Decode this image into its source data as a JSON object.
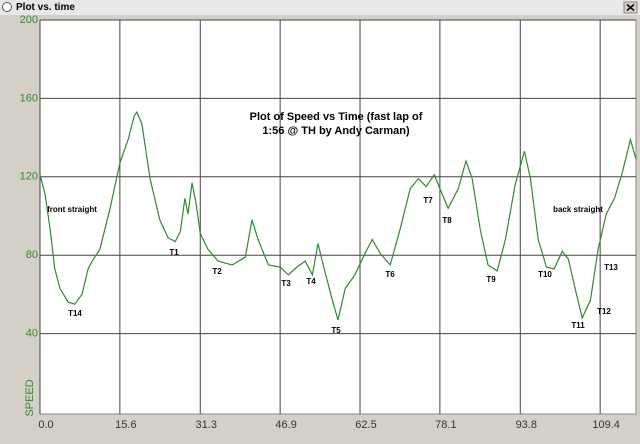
{
  "window": {
    "title": "Plot vs. time"
  },
  "chart_data": {
    "type": "line",
    "title": [
      "Plot of Speed vs Time (fast lap of",
      "1:56 @ TH by Andy Carman)"
    ],
    "ylabel": "SPEED",
    "color": "#2e8b2e",
    "grid": true,
    "x": [
      0,
      1.0,
      2.0,
      2.9,
      3.9,
      5.5,
      6.8,
      8.2,
      9.4,
      10.2,
      11.7,
      13.7,
      15.6,
      17.2,
      18.4,
      18.9,
      19.9,
      21.5,
      23.4,
      25.0,
      26.4,
      27.4,
      28.3,
      28.9,
      29.7,
      30.5,
      31.3,
      32.8,
      34.8,
      37.5,
      40.1,
      41.4,
      42.6,
      44.6,
      46.9,
      48.5,
      50.2,
      51.8,
      53.2,
      54.3,
      55.5,
      57.1,
      58.2,
      59.6,
      61.5,
      63.5,
      64.9,
      66.4,
      68.4,
      70.3,
      72.3,
      73.9,
      75.4,
      77.0,
      78.1,
      79.7,
      81.7,
      83.2,
      84.4,
      86.0,
      87.5,
      89.3,
      90.9,
      92.8,
      94.6,
      95.8,
      97.3,
      98.9,
      100.4,
      102.0,
      103.2,
      104.5,
      105.9,
      107.5,
      109.0,
      110.6,
      112.2,
      113.7,
      115.3,
      116.4
    ],
    "values": [
      121,
      111,
      93,
      73,
      63,
      56,
      55,
      60,
      73,
      77,
      83,
      104,
      127,
      139,
      151,
      153,
      147,
      119,
      98,
      89,
      87,
      92,
      109,
      101,
      117,
      106,
      91,
      83,
      77,
      75,
      79,
      98,
      88,
      75,
      74,
      70,
      74,
      77,
      70,
      86,
      73,
      57,
      47,
      63,
      70,
      81,
      88,
      81,
      75,
      93,
      114,
      119,
      115,
      121,
      114,
      104,
      114,
      128,
      119,
      93,
      75,
      72,
      88,
      116,
      133,
      119,
      88,
      74,
      73,
      82,
      78,
      63,
      48,
      57,
      83,
      101,
      109,
      122,
      139,
      129
    ],
    "xlim": [
      0,
      116.4
    ],
    "ylim": [
      0,
      200
    ],
    "xticks": [
      {
        "value": 0,
        "label": "0.0"
      },
      15.6,
      31.3,
      46.9,
      62.5,
      78.1,
      93.8,
      109.4
    ],
    "yticks": [
      40,
      80,
      120,
      160,
      200
    ],
    "annotations": [
      "front straight",
      "back straight",
      "T1",
      "T2",
      "T3",
      "T4",
      "T5",
      "T6",
      "T7",
      "T8",
      "T9",
      "T10",
      "T11",
      "T12",
      "T13",
      "T14"
    ]
  }
}
